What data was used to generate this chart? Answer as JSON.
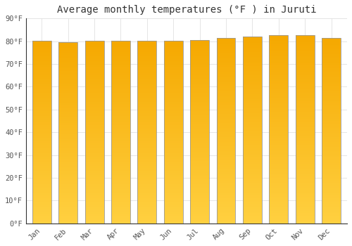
{
  "title": "Average monthly temperatures (°F ) in Juruti",
  "months": [
    "Jan",
    "Feb",
    "Mar",
    "Apr",
    "May",
    "Jun",
    "Jul",
    "Aug",
    "Sep",
    "Oct",
    "Nov",
    "Dec"
  ],
  "values": [
    80.2,
    79.7,
    80.1,
    80.1,
    80.1,
    80.1,
    80.4,
    81.5,
    82.2,
    82.8,
    82.6,
    81.3
  ],
  "bar_color_bottom": "#FFD040",
  "bar_color_top": "#F5A800",
  "bar_edge_color": "#999999",
  "background_color": "#FFFFFF",
  "grid_color": "#E0E0E0",
  "title_fontsize": 10,
  "tick_fontsize": 7.5,
  "ylim": [
    0,
    90
  ],
  "yticks": [
    0,
    10,
    20,
    30,
    40,
    50,
    60,
    70,
    80,
    90
  ],
  "ytick_labels": [
    "0°F",
    "10°F",
    "20°F",
    "30°F",
    "40°F",
    "50°F",
    "60°F",
    "70°F",
    "80°F",
    "90°F"
  ]
}
